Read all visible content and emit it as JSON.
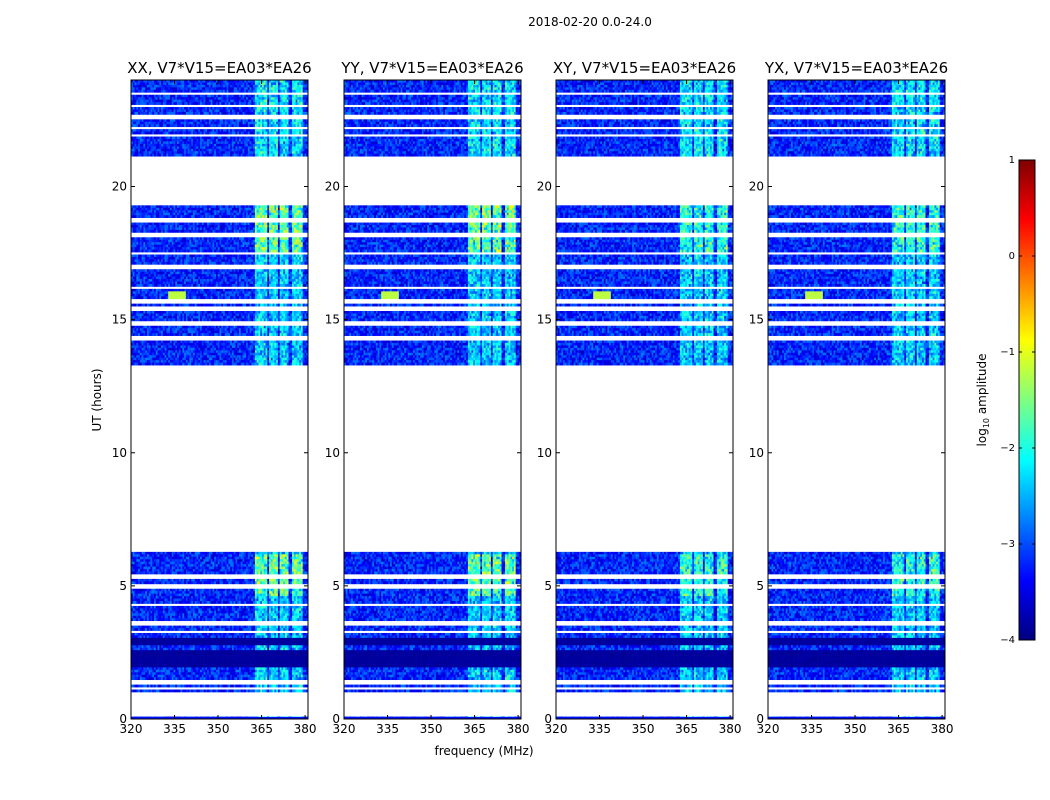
{
  "suptitle": "2018-02-20 0.0-24.0",
  "colorbar": {
    "label": "log",
    "label_sub": "10",
    "label_rest": " amplitude",
    "range": [
      -4,
      1
    ],
    "ticks": [
      "1",
      "0",
      "−1",
      "−2",
      "−3",
      "−4"
    ],
    "tick_values": [
      1,
      0,
      -1,
      -2,
      -3,
      -4
    ],
    "colormap": "jet",
    "jet_stops": [
      "#00007f",
      "#0000ff",
      "#007fff",
      "#00ffff",
      "#7fff7f",
      "#ffff00",
      "#ff7f00",
      "#ff0000",
      "#7f0000"
    ]
  },
  "chart_data": {
    "type": "heatmap",
    "shared": {
      "xlabel": "frequency (MHz)",
      "ylabel": "UT (hours)",
      "xlim": [
        320,
        381
      ],
      "ylim": [
        0,
        24
      ],
      "x_ticks": [
        320,
        335,
        350,
        365,
        380
      ],
      "x_tick_labels": [
        "320",
        "335",
        "350",
        "365",
        "380"
      ],
      "y_ticks": [
        0,
        5,
        10,
        15,
        20
      ],
      "y_tick_labels": [
        "0",
        "5",
        "10",
        "15",
        "20"
      ]
    },
    "data_coverage_hours": [
      [
        0.0,
        0.05
      ],
      [
        1.0,
        6.25
      ],
      [
        13.3,
        19.3
      ],
      [
        21.1,
        24.0
      ]
    ],
    "background_log_amplitude": -3.2,
    "rfi_bands_mhz": [
      [
        363,
        367
      ],
      [
        367.5,
        370.5
      ],
      [
        371.5,
        374.5
      ],
      [
        375.5,
        379
      ]
    ],
    "rfi_log_amplitude": -1.4,
    "panels": [
      {
        "title": "XX, V7*V15=EA03*EA26",
        "polarization": "XX"
      },
      {
        "title": "YY, V7*V15=EA03*EA26",
        "polarization": "YY"
      },
      {
        "title": "XY, V7*V15=EA03*EA26",
        "polarization": "XY"
      },
      {
        "title": "YX, V7*V15=EA03*EA26",
        "polarization": "YX"
      }
    ]
  }
}
